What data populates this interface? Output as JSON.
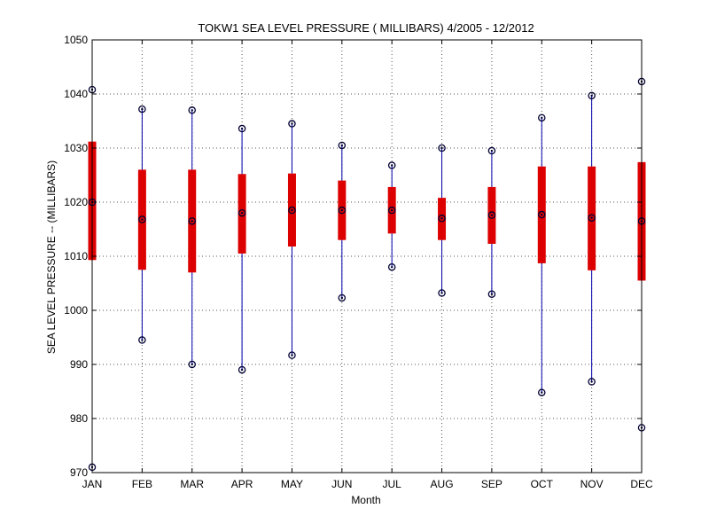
{
  "chart_data": {
    "type": "box",
    "title": "TOKW1  SEA LEVEL PRESSURE ( MILLIBARS) 4/2005 - 12/2012",
    "xlabel": "Month",
    "ylabel": "SEA LEVEL PRESSURE -- (MILLIBARS)",
    "ylim": [
      970,
      1050
    ],
    "yticks": [
      970,
      980,
      990,
      1000,
      1010,
      1020,
      1030,
      1040,
      1050
    ],
    "grid": true,
    "categories": [
      "JAN",
      "FEB",
      "MAR",
      "APR",
      "MAY",
      "JUN",
      "JUL",
      "AUG",
      "SEP",
      "OCT",
      "NOV",
      "DEC"
    ],
    "series": [
      {
        "min": [
          971.0,
          994.5,
          990.0,
          989.0,
          991.7,
          1002.3,
          1008.0,
          1003.2,
          1003.0,
          984.8,
          986.8,
          978.3
        ],
        "q1": [
          1009.3,
          1007.5,
          1007.0,
          1010.5,
          1011.8,
          1013.0,
          1014.2,
          1013.0,
          1012.3,
          1008.7,
          1007.4,
          1005.5
        ],
        "median": [
          1020.0,
          1016.8,
          1016.5,
          1018.0,
          1018.5,
          1018.5,
          1018.5,
          1017.0,
          1017.6,
          1017.7,
          1017.1,
          1016.5
        ],
        "q3": [
          1031.2,
          1026.0,
          1026.0,
          1025.2,
          1025.3,
          1024.0,
          1022.8,
          1020.8,
          1022.8,
          1026.6,
          1026.6,
          1027.4
        ],
        "max": [
          1040.8,
          1037.2,
          1037.0,
          1033.6,
          1034.5,
          1030.5,
          1026.8,
          1030.0,
          1029.5,
          1035.6,
          1039.7,
          1042.3
        ]
      }
    ],
    "colors": {
      "whisker": "#0000aa",
      "box": "#dd0000",
      "marker": "#000033",
      "grid": "#555555"
    }
  }
}
